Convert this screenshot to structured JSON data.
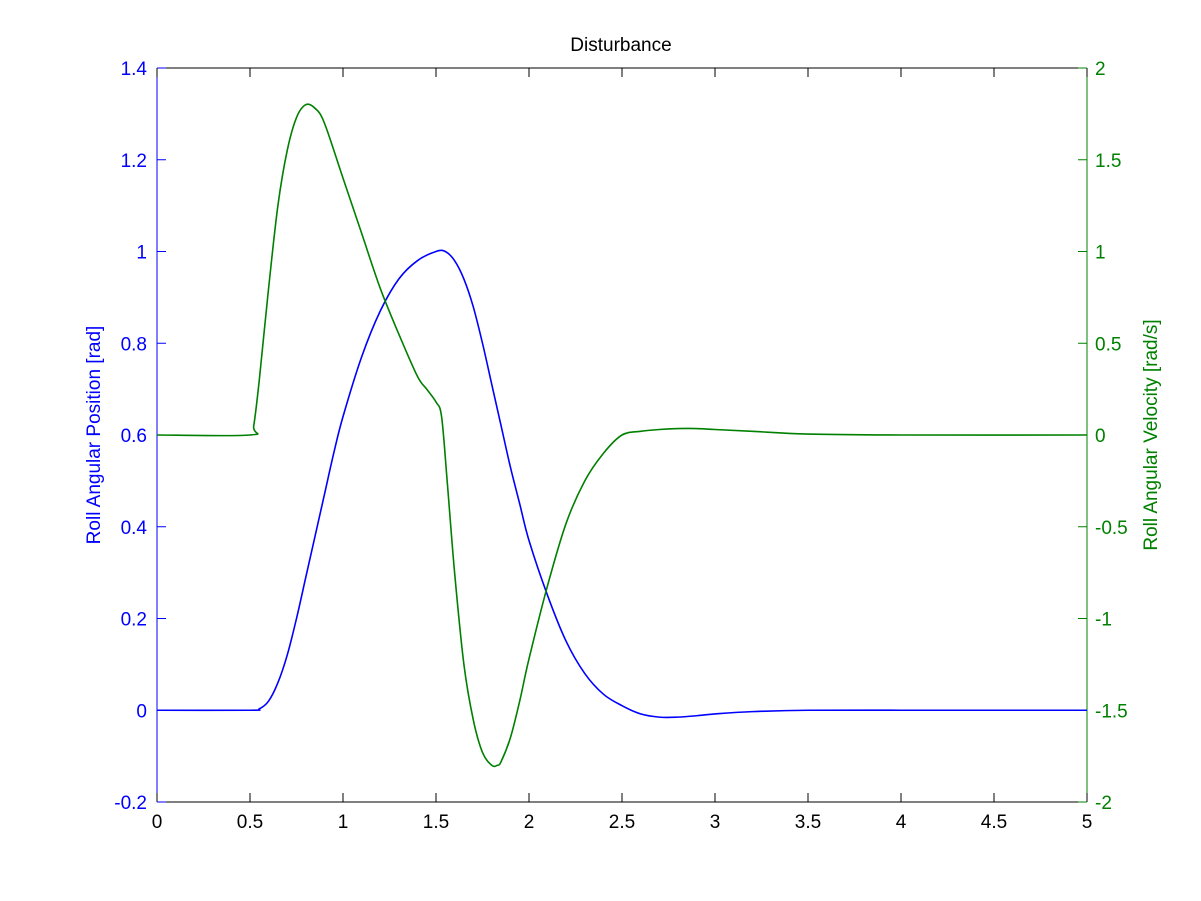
{
  "chart_data": {
    "type": "line",
    "title": "Disturbance",
    "xlabel": "",
    "xlim": [
      0,
      5
    ],
    "x_ticks": [
      "0",
      "0.5",
      "1",
      "1.5",
      "2",
      "2.5",
      "3",
      "3.5",
      "4",
      "4.5",
      "5"
    ],
    "y_left": {
      "label": "Roll Angular Position [rad]",
      "lim": [
        -0.2,
        1.4
      ],
      "ticks": [
        "-0.2",
        "0",
        "0.2",
        "0.4",
        "0.6",
        "0.8",
        "1",
        "1.2",
        "1.4"
      ],
      "color": "#0000ff"
    },
    "y_right": {
      "label": "Roll Angular Velocity [rad/s]",
      "lim": [
        -2,
        2
      ],
      "ticks": [
        "-2",
        "-1.5",
        "-1",
        "-0.5",
        "0",
        "0.5",
        "1",
        "1.5",
        "2"
      ],
      "color": "#008000"
    },
    "grid": false,
    "series": [
      {
        "axis": "left",
        "color": "#0000ff",
        "x": [
          0,
          0.5,
          0.55,
          0.6,
          0.65,
          0.7,
          0.75,
          0.8,
          0.85,
          0.9,
          0.95,
          1.0,
          1.1,
          1.2,
          1.3,
          1.4,
          1.5,
          1.55,
          1.6,
          1.65,
          1.7,
          1.75,
          1.8,
          1.85,
          1.9,
          1.95,
          2.0,
          2.1,
          2.2,
          2.3,
          2.4,
          2.5,
          2.6,
          2.7,
          2.8,
          2.9,
          3.0,
          3.2,
          3.5,
          4.0,
          4.5,
          5.0
        ],
        "y": [
          0,
          0,
          0.003,
          0.02,
          0.06,
          0.12,
          0.2,
          0.29,
          0.38,
          0.47,
          0.56,
          0.64,
          0.77,
          0.87,
          0.94,
          0.98,
          1.0,
          1.0,
          0.98,
          0.94,
          0.88,
          0.8,
          0.71,
          0.62,
          0.53,
          0.45,
          0.37,
          0.25,
          0.15,
          0.08,
          0.035,
          0.01,
          -0.008,
          -0.015,
          -0.015,
          -0.012,
          -0.008,
          -0.003,
          0,
          0,
          0,
          0
        ]
      },
      {
        "axis": "right",
        "color": "#008000",
        "x": [
          0,
          0.5,
          0.52,
          0.55,
          0.6,
          0.65,
          0.7,
          0.75,
          0.8,
          0.85,
          0.9,
          1.0,
          1.1,
          1.2,
          1.3,
          1.4,
          1.45,
          1.5,
          1.53,
          1.56,
          1.6,
          1.65,
          1.7,
          1.75,
          1.8,
          1.83,
          1.85,
          1.9,
          1.95,
          2.0,
          2.1,
          2.2,
          2.3,
          2.4,
          2.5,
          2.6,
          2.7,
          2.8,
          2.9,
          3.0,
          3.2,
          3.5,
          4.0,
          5.0
        ],
        "y": [
          0,
          0,
          0.05,
          0.3,
          0.8,
          1.25,
          1.55,
          1.73,
          1.8,
          1.78,
          1.7,
          1.4,
          1.1,
          0.8,
          0.55,
          0.32,
          0.25,
          0.18,
          0.1,
          -0.25,
          -0.75,
          -1.25,
          -1.55,
          -1.73,
          -1.8,
          -1.8,
          -1.78,
          -1.65,
          -1.45,
          -1.22,
          -0.82,
          -0.48,
          -0.25,
          -0.1,
          0,
          0.02,
          0.03,
          0.035,
          0.035,
          0.03,
          0.02,
          0.005,
          0,
          0
        ]
      }
    ]
  }
}
